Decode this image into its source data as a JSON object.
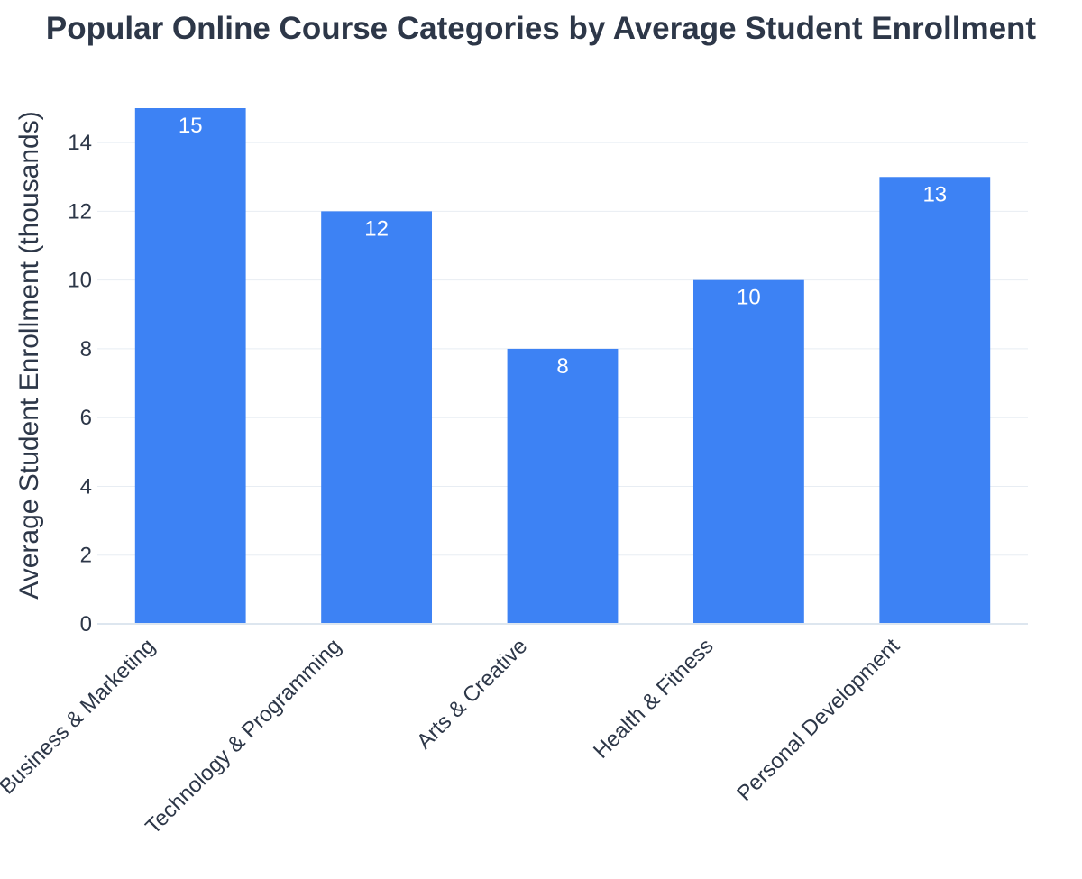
{
  "chart_data": {
    "type": "bar",
    "title": "Popular Online Course Categories by Average Student Enrollment",
    "xlabel": "",
    "ylabel": "Average Student Enrollment (thousands)",
    "categories": [
      "Business & Marketing",
      "Technology & Programming",
      "Arts & Creative",
      "Health & Fitness",
      "Personal Development"
    ],
    "values": [
      15,
      12,
      8,
      10,
      13
    ],
    "ylim": [
      0,
      15
    ],
    "yticks": [
      0,
      2,
      4,
      6,
      8,
      10,
      12,
      14
    ],
    "grid": true,
    "bar_color": "#3d82f4",
    "text_color": "#2d3748"
  }
}
